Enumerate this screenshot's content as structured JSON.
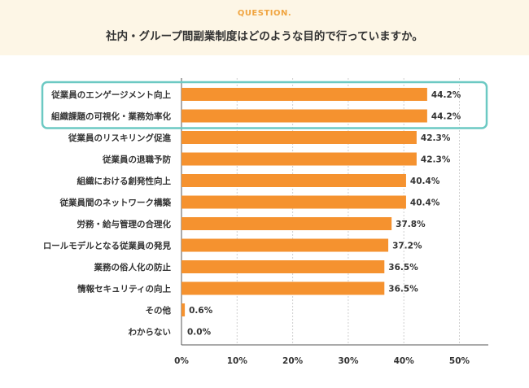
{
  "question": {
    "label": "QUESTION.",
    "title": "社内・グループ間副業制度はどのような目的で行っていますか。"
  },
  "colors": {
    "bar": "#f5922f",
    "highlight": "#6cc9c3",
    "header_bg": "#fdf6e6",
    "accent": "#f0a541"
  },
  "chart_data": {
    "type": "bar",
    "orientation": "horizontal",
    "title": "社内・グループ間副業制度はどのような目的で行っていますか。",
    "categories": [
      "従業員のエンゲージメント向上",
      "組織課題の可視化・業務効率化",
      "従業員のリスキリング促進",
      "従業員の退職予防",
      "組織における創発性向上",
      "従業員間のネットワーク構築",
      "労務・給与管理の合理化",
      "ロールモデルとなる従業員の発見",
      "業務の俗人化の防止",
      "情報セキュリティの向上",
      "その他",
      "わからない"
    ],
    "values": [
      44.2,
      44.2,
      42.3,
      42.3,
      40.4,
      40.4,
      37.8,
      37.2,
      36.5,
      36.5,
      0.6,
      0.0
    ],
    "value_labels": [
      "44.2%",
      "44.2%",
      "42.3%",
      "42.3%",
      "40.4%",
      "40.4%",
      "37.8%",
      "37.2%",
      "36.5%",
      "36.5%",
      "0.6%",
      "0.0%"
    ],
    "xticks": [
      "0%",
      "10%",
      "20%",
      "30%",
      "40%",
      "50%"
    ],
    "xlim": [
      0,
      55
    ],
    "xlabel": "",
    "ylabel": "",
    "grid": true,
    "highlighted_categories": [
      0,
      1
    ]
  }
}
